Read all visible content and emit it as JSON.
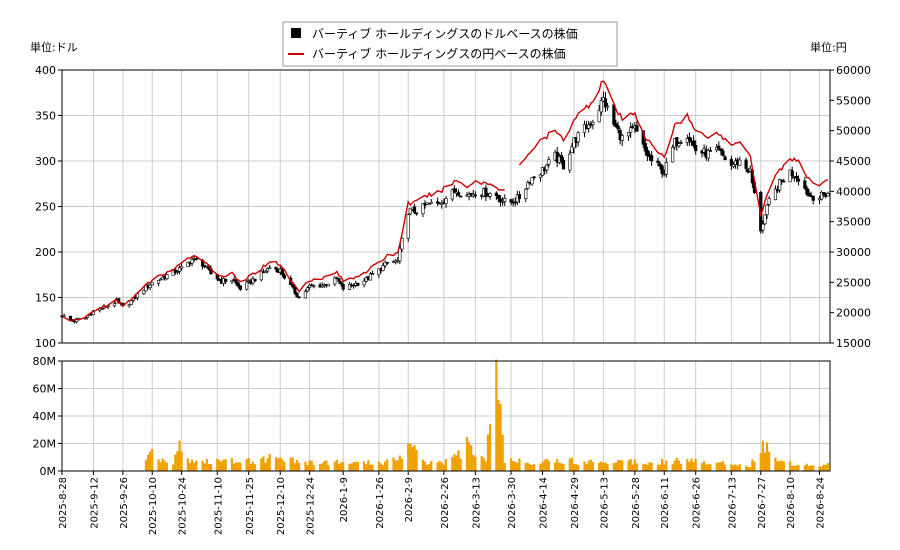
{
  "chart_data": {
    "type": "candlestick+line+bar",
    "legend": {
      "placement": "top-center",
      "entries": [
        {
          "label": "バーティブ ホールディングスのドルベースの株価",
          "color": "#000000",
          "marker": "square"
        },
        {
          "label": "バーティブ ホールディングスの円ベースの株価",
          "color": "#cc0000",
          "marker": "line"
        }
      ]
    },
    "left_axis": {
      "unit_label": "単位:ドル",
      "ylim": [
        100,
        400
      ],
      "ticks": [
        "100",
        "150",
        "200",
        "250",
        "300",
        "350",
        "400"
      ]
    },
    "right_axis": {
      "unit_label": "単位:円",
      "ylim": [
        15000,
        60000
      ],
      "ticks": [
        "15000",
        "20000",
        "25000",
        "30000",
        "35000",
        "40000",
        "45000",
        "50000",
        "55000",
        "60000"
      ]
    },
    "volume_axis": {
      "ylim": [
        0,
        80
      ],
      "ticks": [
        "0M",
        "20M",
        "40M",
        "60M",
        "80M"
      ]
    },
    "x_axis": {
      "range": [
        "2025-08-28",
        "2026-08-29"
      ],
      "ticks": [
        "2025-8-28",
        "2025-9-12",
        "2025-9-26",
        "2025-10-10",
        "2025-10-24",
        "2025-11-10",
        "2025-11-25",
        "2025-12-10",
        "2025-12-24",
        "2026-1-9",
        "2026-1-26",
        "2026-2-9",
        "2026-2-26",
        "2026-3-13",
        "2026-3-30",
        "2026-4-14",
        "2026-4-29",
        "2026-5-13",
        "2026-5-28",
        "2026-6-11",
        "2026-6-26",
        "2026-7-13",
        "2026-7-27",
        "2026-8-10",
        "2026-8-24"
      ]
    },
    "grid": true,
    "usd_price_points": [
      [
        "2025-08-28",
        130
      ],
      [
        "2025-09-02",
        124
      ],
      [
        "2025-09-08",
        128
      ],
      [
        "2025-09-12",
        135
      ],
      [
        "2025-09-18",
        140
      ],
      [
        "2025-09-23",
        146
      ],
      [
        "2025-09-26",
        139
      ],
      [
        "2025-10-01",
        148
      ],
      [
        "2025-10-06",
        160
      ],
      [
        "2025-10-10",
        166
      ],
      [
        "2025-10-15",
        172
      ],
      [
        "2025-10-20",
        178
      ],
      [
        "2025-10-24",
        182
      ],
      [
        "2025-10-29",
        192
      ],
      [
        "2025-11-03",
        187
      ],
      [
        "2025-11-07",
        176
      ],
      [
        "2025-11-12",
        168
      ],
      [
        "2025-11-17",
        170
      ],
      [
        "2025-11-21",
        160
      ],
      [
        "2025-11-25",
        166
      ],
      [
        "2025-12-01",
        176
      ],
      [
        "2025-12-05",
        183
      ],
      [
        "2025-12-10",
        180
      ],
      [
        "2025-12-15",
        162
      ],
      [
        "2025-12-19",
        150
      ],
      [
        "2025-12-24",
        162
      ],
      [
        "2025-12-31",
        164
      ],
      [
        "2026-01-06",
        170
      ],
      [
        "2026-01-09",
        160
      ],
      [
        "2026-01-14",
        164
      ],
      [
        "2026-01-20",
        170
      ],
      [
        "2026-01-26",
        180
      ],
      [
        "2026-01-30",
        188
      ],
      [
        "2026-02-04",
        190
      ],
      [
        "2026-02-09",
        245
      ],
      [
        "2026-02-13",
        245
      ],
      [
        "2026-02-18",
        252
      ],
      [
        "2026-02-23",
        253
      ],
      [
        "2026-02-26",
        258
      ],
      [
        "2026-03-04",
        268
      ],
      [
        "2026-03-09",
        262
      ],
      [
        "2026-03-13",
        266
      ],
      [
        "2026-03-18",
        265
      ],
      [
        "2026-03-23",
        262
      ],
      [
        "2026-03-27",
        255
      ],
      [
        "2026-03-30",
        255
      ],
      [
        "2026-04-03",
        260
      ],
      [
        "2026-04-08",
        280
      ],
      [
        "2026-04-14",
        290
      ],
      [
        "2026-04-20",
        305
      ],
      [
        "2026-04-24",
        295
      ],
      [
        "2026-04-29",
        322
      ],
      [
        "2026-05-04",
        335
      ],
      [
        "2026-05-08",
        345
      ],
      [
        "2026-05-13",
        368
      ],
      [
        "2026-05-18",
        340
      ],
      [
        "2026-05-22",
        325
      ],
      [
        "2026-05-28",
        335
      ],
      [
        "2026-06-02",
        310
      ],
      [
        "2026-06-05",
        300
      ],
      [
        "2026-06-11",
        288
      ],
      [
        "2026-06-16",
        320
      ],
      [
        "2026-06-22",
        330
      ],
      [
        "2026-06-26",
        312
      ],
      [
        "2026-07-01",
        308
      ],
      [
        "2026-07-07",
        310
      ],
      [
        "2026-07-13",
        295
      ],
      [
        "2026-07-17",
        300
      ],
      [
        "2026-07-22",
        288
      ],
      [
        "2026-07-27",
        225
      ],
      [
        "2026-07-31",
        255
      ],
      [
        "2026-08-05",
        275
      ],
      [
        "2026-08-10",
        288
      ],
      [
        "2026-08-14",
        282
      ],
      [
        "2026-08-19",
        262
      ],
      [
        "2026-08-24",
        260
      ],
      [
        "2026-08-28",
        265
      ]
    ],
    "jpy_price_points": [
      [
        "2025-08-28",
        19500
      ],
      [
        "2025-09-02",
        18600
      ],
      [
        "2025-09-08",
        19200
      ],
      [
        "2025-09-12",
        20300
      ],
      [
        "2025-09-18",
        21100
      ],
      [
        "2025-09-23",
        22000
      ],
      [
        "2025-09-26",
        21200
      ],
      [
        "2025-10-01",
        22500
      ],
      [
        "2025-10-06",
        24200
      ],
      [
        "2025-10-10",
        25400
      ],
      [
        "2025-10-15",
        26300
      ],
      [
        "2025-10-20",
        27100
      ],
      [
        "2025-10-24",
        28000
      ],
      [
        "2025-10-29",
        29500
      ],
      [
        "2025-11-03",
        28800
      ],
      [
        "2025-11-07",
        27200
      ],
      [
        "2025-11-12",
        26000
      ],
      [
        "2025-11-17",
        26400
      ],
      [
        "2025-11-21",
        25000
      ],
      [
        "2025-11-25",
        25900
      ],
      [
        "2025-12-01",
        27300
      ],
      [
        "2025-12-05",
        28500
      ],
      [
        "2025-12-10",
        28000
      ],
      [
        "2025-12-15",
        25300
      ],
      [
        "2025-12-19",
        23600
      ],
      [
        "2025-12-24",
        25400
      ],
      [
        "2025-12-31",
        25800
      ],
      [
        "2026-01-06",
        26700
      ],
      [
        "2026-01-09",
        25200
      ],
      [
        "2026-01-14",
        25800
      ],
      [
        "2026-01-20",
        26800
      ],
      [
        "2026-01-26",
        28200
      ],
      [
        "2026-01-30",
        29400
      ],
      [
        "2026-02-04",
        29800
      ],
      [
        "2026-02-09",
        38000
      ],
      [
        "2026-02-13",
        38200
      ],
      [
        "2026-02-18",
        39300
      ],
      [
        "2026-02-23",
        39700
      ],
      [
        "2026-02-26",
        40500
      ],
      [
        "2026-03-04",
        41800
      ],
      [
        "2026-03-09",
        40900
      ],
      [
        "2026-03-13",
        41600
      ],
      [
        "2026-03-18",
        41400
      ],
      [
        "2026-03-23",
        40800
      ],
      [
        "2026-03-27",
        40000
      ],
      [
        "2026-04-03",
        44500
      ],
      [
        "2026-04-08",
        46500
      ],
      [
        "2026-04-14",
        48500
      ],
      [
        "2026-04-20",
        50000
      ],
      [
        "2026-04-24",
        48300
      ],
      [
        "2026-04-29",
        52000
      ],
      [
        "2026-05-04",
        53500
      ],
      [
        "2026-05-08",
        55000
      ],
      [
        "2026-05-13",
        58500
      ],
      [
        "2026-05-18",
        54000
      ],
      [
        "2026-05-22",
        51800
      ],
      [
        "2026-05-28",
        53000
      ],
      [
        "2026-06-02",
        49000
      ],
      [
        "2026-06-05",
        47500
      ],
      [
        "2026-06-11",
        45500
      ],
      [
        "2026-06-16",
        51000
      ],
      [
        "2026-06-22",
        52500
      ],
      [
        "2026-06-26",
        49800
      ],
      [
        "2026-07-01",
        49200
      ],
      [
        "2026-07-07",
        49500
      ],
      [
        "2026-07-13",
        47500
      ],
      [
        "2026-07-17",
        48500
      ],
      [
        "2026-07-22",
        46000
      ],
      [
        "2026-07-27",
        36000
      ],
      [
        "2026-07-31",
        40500
      ],
      [
        "2026-08-05",
        43500
      ],
      [
        "2026-08-10",
        45500
      ],
      [
        "2026-08-14",
        44800
      ],
      [
        "2026-08-19",
        41800
      ],
      [
        "2026-08-24",
        41200
      ],
      [
        "2026-08-28",
        42000
      ]
    ],
    "jpy_line_gap": [
      "2026-03-27",
      "2026-04-03"
    ],
    "volume_points": [
      [
        "2025-10-07",
        7
      ],
      [
        "2025-10-10",
        16
      ],
      [
        "2025-10-15",
        8
      ],
      [
        "2025-10-20",
        7
      ],
      [
        "2025-10-23",
        22
      ],
      [
        "2025-10-28",
        8
      ],
      [
        "2025-11-04",
        7
      ],
      [
        "2025-11-12",
        8
      ],
      [
        "2025-11-20",
        9
      ],
      [
        "2025-12-01",
        8
      ],
      [
        "2025-12-08",
        12
      ],
      [
        "2025-12-15",
        9
      ],
      [
        "2025-12-22",
        6
      ],
      [
        "2026-01-05",
        7
      ],
      [
        "2026-01-13",
        6
      ],
      [
        "2026-01-22",
        6
      ],
      [
        "2026-02-02",
        8
      ],
      [
        "2026-02-10",
        20
      ],
      [
        "2026-02-18",
        7
      ],
      [
        "2026-03-02",
        8
      ],
      [
        "2026-03-10",
        21
      ],
      [
        "2026-03-18",
        9
      ],
      [
        "2026-03-23",
        81
      ],
      [
        "2026-03-27",
        8
      ],
      [
        "2026-04-06",
        7
      ],
      [
        "2026-04-20",
        8
      ],
      [
        "2026-05-04",
        7
      ],
      [
        "2026-05-18",
        8
      ],
      [
        "2026-06-01",
        7
      ],
      [
        "2026-06-15",
        8
      ],
      [
        "2026-06-29",
        7
      ],
      [
        "2026-07-13",
        6
      ],
      [
        "2026-07-22",
        4
      ],
      [
        "2026-07-28",
        22
      ],
      [
        "2026-07-31",
        14
      ],
      [
        "2026-08-05",
        8
      ],
      [
        "2026-08-12",
        5
      ],
      [
        "2026-08-20",
        5
      ],
      [
        "2026-08-28",
        5
      ]
    ],
    "volume_start": "2025-10-07"
  }
}
